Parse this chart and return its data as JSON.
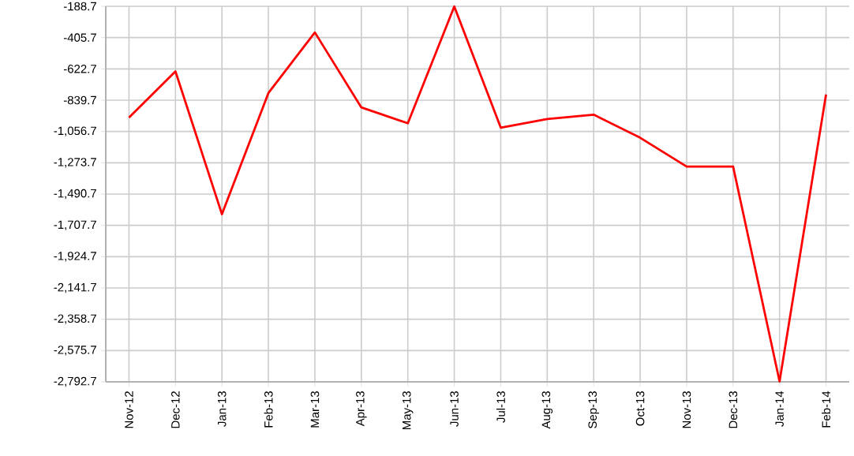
{
  "chart_data": {
    "type": "line",
    "categories": [
      "Nov-12",
      "Dec-12",
      "Jan-13",
      "Feb-13",
      "Mar-13",
      "Apr-13",
      "May-13",
      "Jun-13",
      "Jul-13",
      "Aug-13",
      "Sep-13",
      "Oct-13",
      "Nov-13",
      "Dec-13",
      "Jan-14",
      "Feb-14"
    ],
    "series": [
      {
        "color": "#ff0000",
        "values": [
          -960,
          -640,
          -1630,
          -790,
          -370,
          -890,
          -1000,
          -190,
          -1030,
          -970,
          -940,
          -1100,
          -1300,
          -1300,
          -2790,
          -800
        ]
      }
    ],
    "ylim": [
      -2792.7,
      -188.7
    ],
    "yticks": [
      -188.7,
      -405.7,
      -622.7,
      -839.7,
      {
        "value": -1056.7,
        "label": "-1,056.7"
      },
      {
        "value": -1273.7,
        "label": "-1,273.7"
      },
      {
        "value": -1490.7,
        "label": "-1,490.7"
      },
      {
        "value": -1707.7,
        "label": "-1,707.7"
      },
      {
        "value": -1924.7,
        "label": "-1,924.7"
      },
      {
        "value": -2141.7,
        "label": "-2,141.7"
      },
      {
        "value": -2358.7,
        "label": "-2,358.7"
      },
      {
        "value": -2575.7,
        "label": "-2,575.7"
      },
      {
        "value": -2792.7,
        "label": "-2,792.7"
      }
    ],
    "grid": true
  }
}
